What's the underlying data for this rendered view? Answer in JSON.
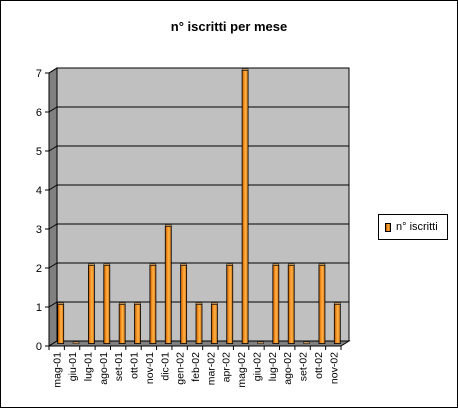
{
  "chart_data": {
    "type": "bar",
    "title": "n° iscritti per mese",
    "categories": [
      "mag-01",
      "giu-01",
      "lug-01",
      "ago-01",
      "set-01",
      "ott-01",
      "nov-01",
      "dic-01",
      "gen-02",
      "feb-02",
      "mar-02",
      "apr-02",
      "mag-02",
      "giu-02",
      "lug-02",
      "ago-02",
      "set-02",
      "ott-02",
      "nov-02"
    ],
    "series": [
      {
        "name": "n° iscritti",
        "values": [
          1,
          0,
          2,
          2,
          1,
          1,
          2,
          3,
          2,
          1,
          1,
          2,
          7,
          0,
          2,
          2,
          0,
          2,
          1
        ]
      }
    ],
    "ylim": [
      0,
      7
    ],
    "yticks": [
      "0",
      "1",
      "2",
      "3",
      "4",
      "5",
      "6",
      "7"
    ],
    "grid": true,
    "legend_position": "right"
  },
  "colors": {
    "plot_background": "#c0c0c0",
    "wall": "#808080",
    "bar": "#ff9a2a",
    "bar_dark": "#b85a00"
  }
}
